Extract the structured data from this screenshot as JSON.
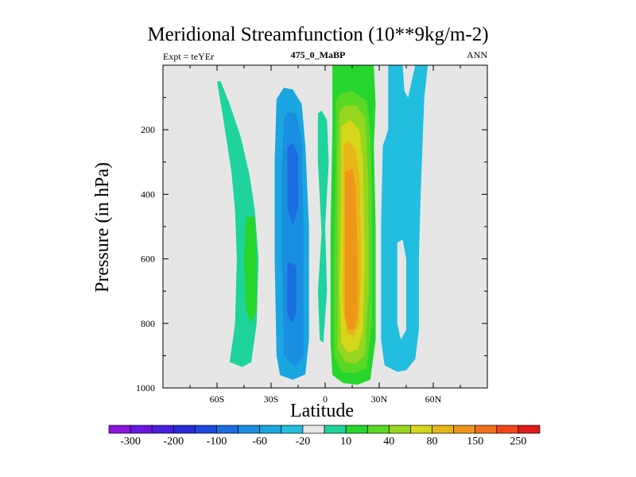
{
  "chart_data": {
    "type": "heatmap",
    "title": "Meridional Streamfunction (10**9kg/m-2)",
    "subtitle_left": "Expt = teYEr",
    "subtitle_center": "475_0_MaBP",
    "subtitle_right": "ANN",
    "xlabel": "Latitude",
    "ylabel": "Pressure (in hPa)",
    "xlim": [
      -90,
      90
    ],
    "ylim": [
      1000,
      0
    ],
    "x_ticks": [
      {
        "value": -60,
        "label": "60S"
      },
      {
        "value": -30,
        "label": "30S"
      },
      {
        "value": 0,
        "label": "0"
      },
      {
        "value": 30,
        "label": "30N"
      },
      {
        "value": 60,
        "label": "60N"
      }
    ],
    "y_ticks": [
      {
        "value": 200,
        "label": "200"
      },
      {
        "value": 400,
        "label": "400"
      },
      {
        "value": 600,
        "label": "600"
      },
      {
        "value": 800,
        "label": "800"
      },
      {
        "value": 1000,
        "label": "1000"
      }
    ],
    "colorbar": {
      "colors": [
        "#8a16e0",
        "#6a16e0",
        "#4a1ee0",
        "#2a2ad8",
        "#1a4ae0",
        "#1a6ee0",
        "#1a8ee0",
        "#1aa6e0",
        "#22bee0",
        "#e6e6e6",
        "#1ed49c",
        "#26d62c",
        "#5ad826",
        "#96d61e",
        "#d6d61a",
        "#e6b61a",
        "#ee961a",
        "#f26e1a",
        "#f2461a",
        "#e21a1a"
      ],
      "labels": [
        "-300",
        "-200",
        "-100",
        "-60",
        "-20",
        "10",
        "40",
        "80",
        "150",
        "250"
      ]
    },
    "series": [
      {
        "name": "southern-mid-latitude-cell",
        "level_min": 10,
        "level_max": 40,
        "lat_range": [
          -58,
          -38
        ],
        "pressure_range": [
          50,
          930
        ],
        "peak_lat": -40,
        "peak_pressure": 700
      },
      {
        "name": "southern-inner-cell",
        "level_min": -60,
        "level_max": -20,
        "lat_range": [
          -27,
          -8
        ],
        "pressure_range": [
          60,
          980
        ],
        "peak_lat": -18,
        "peak_pressure": 350
      },
      {
        "name": "small-equatorial-cell",
        "level_min": 10,
        "level_max": 10,
        "lat_range": [
          -4,
          2
        ],
        "pressure_range": [
          150,
          860
        ]
      },
      {
        "name": "tropical-hadley-cell",
        "level_min": 40,
        "level_max": 150,
        "lat_range": [
          5,
          28
        ],
        "pressure_range": [
          0,
          1000
        ],
        "peak_lat": 13,
        "peak_pressure": 600
      },
      {
        "name": "northern-ferrel-cell",
        "level_min": -20,
        "level_max": 10,
        "lat_range": [
          30,
          57
        ],
        "pressure_range": [
          0,
          950
        ],
        "peak_lat": 45,
        "peak_pressure": 700
      }
    ]
  }
}
